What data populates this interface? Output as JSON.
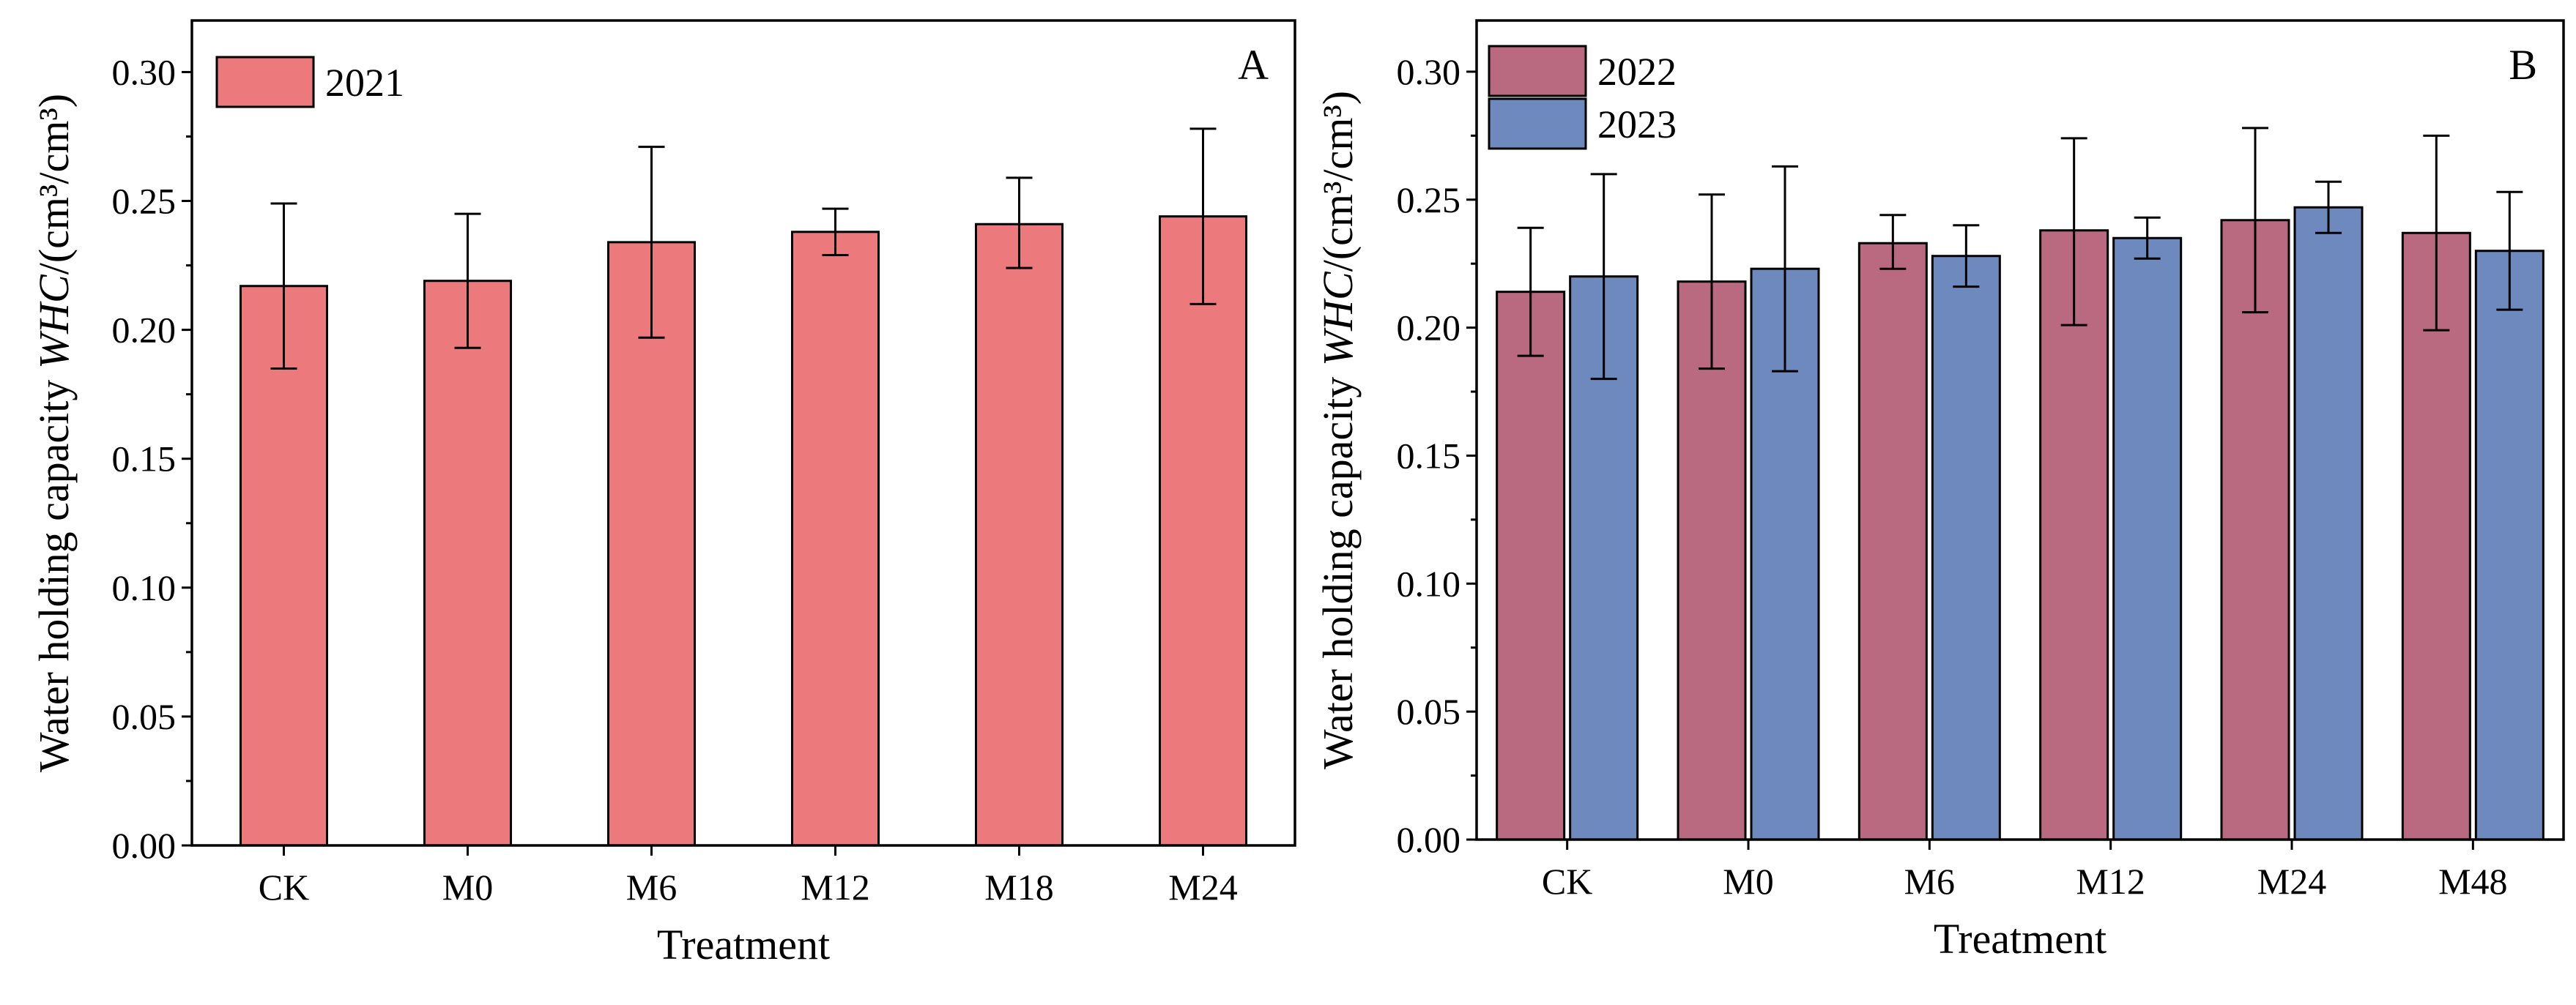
{
  "chart_data": [
    {
      "panel_label": "A",
      "type": "bar",
      "categories": [
        "CK",
        "M0",
        "M6",
        "M12",
        "M18",
        "M24"
      ],
      "series": [
        {
          "name": "2021",
          "color": "#EC7A7C",
          "values": [
            0.217,
            0.219,
            0.234,
            0.238,
            0.241,
            0.244
          ],
          "error_low": [
            0.185,
            0.193,
            0.197,
            0.229,
            0.224,
            0.21
          ],
          "error_high": [
            0.249,
            0.245,
            0.271,
            0.247,
            0.259,
            0.278
          ]
        }
      ],
      "xlabel": "Treatment",
      "ylabel_prefix": "Water holding capacity ",
      "ylabel_italic": "WHC",
      "ylabel_suffix": "/(cm³/cm³)",
      "ylim": [
        0,
        0.32
      ],
      "yticks": [
        "0.00",
        "0.05",
        "0.10",
        "0.15",
        "0.20",
        "0.25",
        "0.30"
      ],
      "legend_position": "top-left",
      "grid": false
    },
    {
      "panel_label": "B",
      "type": "bar",
      "categories": [
        "CK",
        "M0",
        "M6",
        "M12",
        "M24",
        "M48"
      ],
      "series": [
        {
          "name": "2022",
          "color": "#B96A80",
          "values": [
            0.214,
            0.218,
            0.233,
            0.238,
            0.242,
            0.237
          ],
          "error_low": [
            0.189,
            0.184,
            0.223,
            0.201,
            0.206,
            0.199
          ],
          "error_high": [
            0.239,
            0.252,
            0.244,
            0.274,
            0.278,
            0.275
          ]
        },
        {
          "name": "2023",
          "color": "#6E89BD",
          "values": [
            0.22,
            0.223,
            0.228,
            0.235,
            0.247,
            0.23
          ],
          "error_low": [
            0.18,
            0.183,
            0.216,
            0.227,
            0.237,
            0.207
          ],
          "error_high": [
            0.26,
            0.263,
            0.24,
            0.243,
            0.257,
            0.253
          ]
        }
      ],
      "xlabel": "Treatment",
      "ylabel_prefix": "Water holding capacity ",
      "ylabel_italic": "WHC",
      "ylabel_suffix": "/(cm³/cm³)",
      "ylim": [
        0,
        0.32
      ],
      "yticks": [
        "0.00",
        "0.05",
        "0.10",
        "0.15",
        "0.20",
        "0.25",
        "0.30"
      ],
      "legend_position": "top-left",
      "grid": false
    }
  ]
}
